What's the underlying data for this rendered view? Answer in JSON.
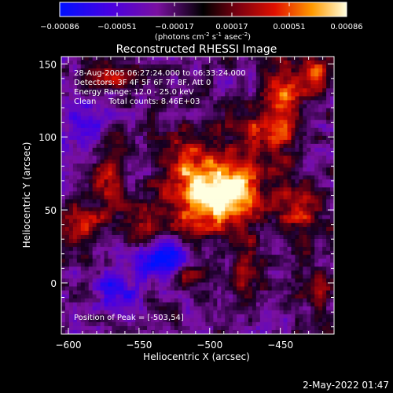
{
  "chart_data": {
    "type": "heatmap",
    "title": "Reconstructed RHESSI Image",
    "xlabel": "Heliocentric X (arcsec)",
    "ylabel": "Heliocentric Y (arcsec)",
    "xlim": [
      -605,
      -412
    ],
    "ylim": [
      -35,
      155
    ],
    "x_ticks": [
      -600,
      -550,
      -500,
      -450
    ],
    "y_ticks": [
      0,
      50,
      100,
      150
    ],
    "colorbar": {
      "ticks": [
        "-0.00086",
        "-0.00051",
        "-0.00017",
        "0.00017",
        "0.00051",
        "0.00086"
      ],
      "units_label": "(photons cm",
      "units_parts": [
        "(photons cm",
        "-2",
        " s",
        "-1",
        " asec",
        "-2",
        ")"
      ],
      "range": [
        -0.00086,
        0.00086
      ]
    },
    "info_lines": [
      "28-Aug-2005 06:27:24.000 to 06:33:24.000",
      "Detectors: 3F 4F 5F 6F 7F 8F, Att 0",
      "Energy Range: 12.0 - 25.0 keV",
      "Clean     Total counts: 8.46E+03"
    ],
    "peak_label": "Position of Peak = [-503,54]",
    "peak": [
      -503,
      54
    ],
    "blobs": [
      {
        "x": -503,
        "y": 54,
        "amp": 0.00086,
        "sx": 22,
        "sy": 14
      },
      {
        "x": -485,
        "y": 70,
        "amp": 0.0007,
        "sx": 18,
        "sy": 16
      },
      {
        "x": -518,
        "y": 85,
        "amp": 0.00052,
        "sx": 14,
        "sy": 14
      },
      {
        "x": -448,
        "y": 120,
        "amp": 0.0007,
        "sx": 10,
        "sy": 22
      },
      {
        "x": -425,
        "y": 145,
        "amp": 0.00065,
        "sx": 8,
        "sy": 10
      },
      {
        "x": -570,
        "y": 70,
        "amp": 0.00052,
        "sx": 8,
        "sy": 18
      },
      {
        "x": -592,
        "y": 40,
        "amp": 0.00052,
        "sx": 10,
        "sy": 12
      },
      {
        "x": -570,
        "y": 140,
        "amp": 0.0005,
        "sx": 12,
        "sy": 6
      },
      {
        "x": -545,
        "y": 35,
        "amp": 0.0004,
        "sx": 8,
        "sy": 12
      },
      {
        "x": -520,
        "y": 5,
        "amp": 0.0005,
        "sx": 10,
        "sy": 6
      },
      {
        "x": -475,
        "y": 10,
        "amp": 0.00045,
        "sx": 8,
        "sy": 14
      },
      {
        "x": -435,
        "y": 50,
        "amp": 0.0005,
        "sx": 12,
        "sy": 14
      },
      {
        "x": -425,
        "y": -5,
        "amp": 0.00042,
        "sx": 8,
        "sy": 10
      },
      {
        "x": -470,
        "y": 105,
        "amp": 0.0004,
        "sx": 12,
        "sy": 10
      },
      {
        "x": -535,
        "y": 15,
        "amp": -0.0008,
        "sx": 12,
        "sy": 10
      },
      {
        "x": -565,
        "y": -5,
        "amp": -0.0005,
        "sx": 10,
        "sy": 10
      },
      {
        "x": -590,
        "y": 105,
        "amp": -0.0004,
        "sx": 12,
        "sy": 12
      }
    ]
  },
  "footer": {
    "timestamp": "2-May-2022 01:47"
  },
  "colors": {
    "background": "#000000",
    "foreground": "#ffffff"
  }
}
